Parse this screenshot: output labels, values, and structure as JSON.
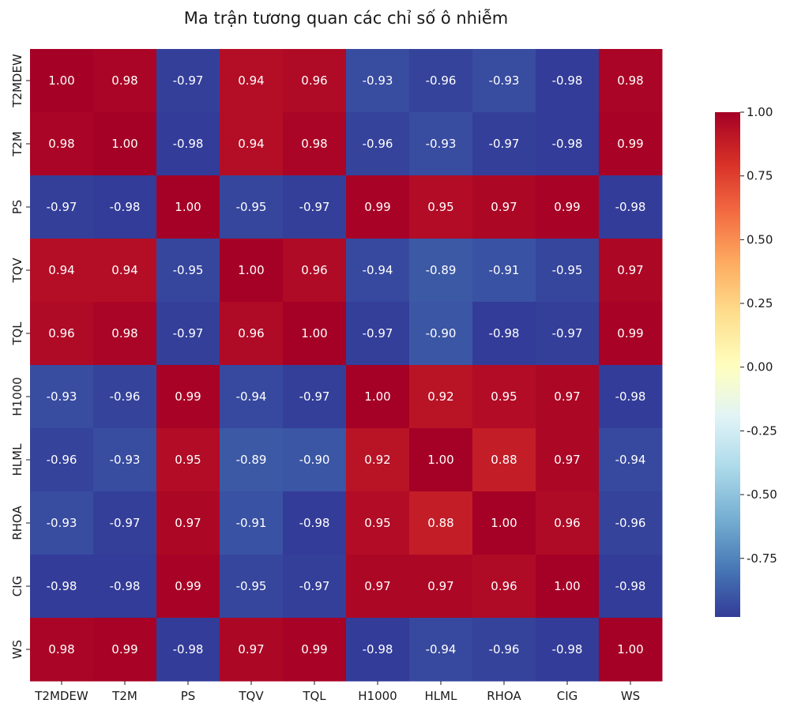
{
  "chart_data": {
    "type": "heatmap",
    "title": "Ma trận tương quan các chỉ số ô nhiễm",
    "xlabel": "",
    "ylabel": "",
    "x_labels": [
      "T2MDEW",
      "T2M",
      "PS",
      "TQV",
      "TQL",
      "H1000",
      "HLML",
      "RHOA",
      "CIG",
      "WS"
    ],
    "y_labels": [
      "T2MDEW",
      "T2M",
      "PS",
      "TQV",
      "TQL",
      "H1000",
      "HLML",
      "RHOA",
      "CIG",
      "WS"
    ],
    "matrix": [
      [
        1.0,
        0.98,
        -0.97,
        0.94,
        0.96,
        -0.93,
        -0.96,
        -0.93,
        -0.98,
        0.98
      ],
      [
        0.98,
        1.0,
        -0.98,
        0.94,
        0.98,
        -0.96,
        -0.93,
        -0.97,
        -0.98,
        0.99
      ],
      [
        -0.97,
        -0.98,
        1.0,
        -0.95,
        -0.97,
        0.99,
        0.95,
        0.97,
        0.99,
        -0.98
      ],
      [
        0.94,
        0.94,
        -0.95,
        1.0,
        0.96,
        -0.94,
        -0.89,
        -0.91,
        -0.95,
        0.97
      ],
      [
        0.96,
        0.98,
        -0.97,
        0.96,
        1.0,
        -0.97,
        -0.9,
        -0.98,
        -0.97,
        0.99
      ],
      [
        -0.93,
        -0.96,
        0.99,
        -0.94,
        -0.97,
        1.0,
        0.92,
        0.95,
        0.97,
        -0.98
      ],
      [
        -0.96,
        -0.93,
        0.95,
        -0.89,
        -0.9,
        0.92,
        1.0,
        0.88,
        0.97,
        -0.94
      ],
      [
        -0.93,
        -0.97,
        0.97,
        -0.91,
        -0.98,
        0.95,
        0.88,
        1.0,
        0.96,
        -0.96
      ],
      [
        -0.98,
        -0.98,
        0.99,
        -0.95,
        -0.97,
        0.97,
        0.97,
        0.96,
        1.0,
        -0.98
      ],
      [
        0.98,
        0.99,
        -0.98,
        0.97,
        0.99,
        -0.98,
        -0.94,
        -0.96,
        -0.98,
        1.0
      ]
    ],
    "value_format": "2 decimals",
    "colormap": "RdYlBu_r",
    "colormap_stops": [
      "#313695",
      "#4575b4",
      "#74add1",
      "#abd9e9",
      "#e0f3f8",
      "#ffffbf",
      "#fee090",
      "#fdae61",
      "#f46d43",
      "#d73027",
      "#a50026"
    ],
    "vmin": -1.0,
    "vmax": 1.0,
    "colorbar": {
      "ticks": [
        1.0,
        0.75,
        0.5,
        0.25,
        0.0,
        -0.25,
        -0.5,
        -0.75
      ],
      "tick_labels": [
        "1.00",
        "0.75",
        "0.50",
        "0.25",
        "0.00",
        "-0.25",
        "-0.50",
        "-0.75"
      ],
      "range": [
        -0.98,
        1.0
      ]
    },
    "grid": false,
    "legend": "colorbar-right"
  }
}
